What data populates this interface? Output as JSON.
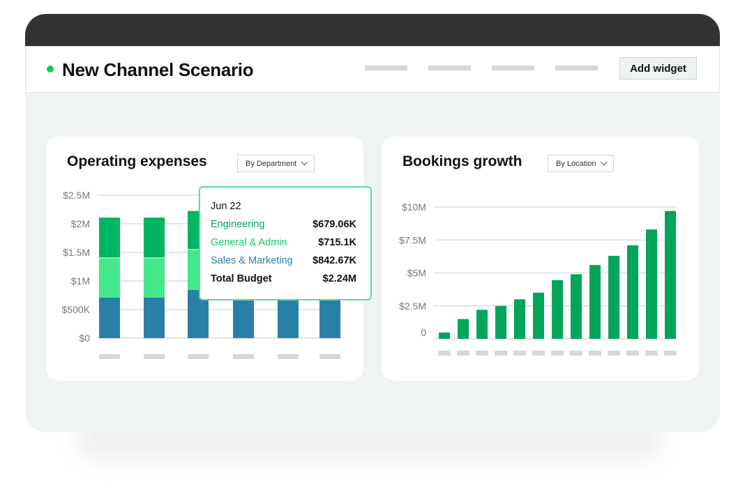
{
  "header": {
    "title": "New Channel Scenario",
    "status_color": "#1ccb4f",
    "add_widget_label": "Add widget"
  },
  "colors": {
    "engineering": "#00b561",
    "general_admin": "#44e88a",
    "sales_marketing": "#2980a6",
    "bookings": "#00a55a",
    "grid": "#d9dee2",
    "placeholder": "#d3d8dc"
  },
  "opex": {
    "title": "Operating expenses",
    "filter": "By Department",
    "tooltip": {
      "date": "Jun 22",
      "rows": [
        {
          "label": "Engineering",
          "value": "$679.06K",
          "color": "#00a55a"
        },
        {
          "label": "General & Admin",
          "value": "$715.1K",
          "color": "#1cc46e"
        },
        {
          "label": "Sales & Marketing",
          "value": "$842.67K",
          "color": "#2980a6"
        },
        {
          "label": "Total Budget",
          "value": "$2.24M",
          "color": "#111111"
        }
      ]
    }
  },
  "bookings": {
    "title": "Bookings growth",
    "filter": "By Location"
  },
  "chart_data": [
    {
      "type": "bar",
      "stacked": true,
      "title": "Operating expenses",
      "ylim": [
        0,
        2500000
      ],
      "yticks": [
        "$0",
        "$500K",
        "$1M",
        "$1.5M",
        "$2M",
        "$2.5M"
      ],
      "grid": true,
      "series": [
        {
          "name": "Sales & Marketing",
          "values": [
            710000,
            710000,
            842670,
            670000,
            670000,
            670000
          ]
        },
        {
          "name": "General & Admin",
          "values": [
            700000,
            700000,
            715100,
            700000,
            700000,
            700000
          ]
        },
        {
          "name": "Engineering",
          "values": [
            710000,
            710000,
            679060,
            710000,
            710000,
            710000
          ]
        }
      ]
    },
    {
      "type": "bar",
      "title": "Bookings growth",
      "ylim": [
        0,
        10000000
      ],
      "yticks": [
        "0",
        "$2.5M",
        "$5M",
        "$7.5M",
        "$10M"
      ],
      "grid": true,
      "values": [
        480000,
        1500000,
        2200000,
        2500000,
        3000000,
        3500000,
        4450000,
        4900000,
        5600000,
        6300000,
        7100000,
        8300000,
        9700000
      ]
    }
  ]
}
